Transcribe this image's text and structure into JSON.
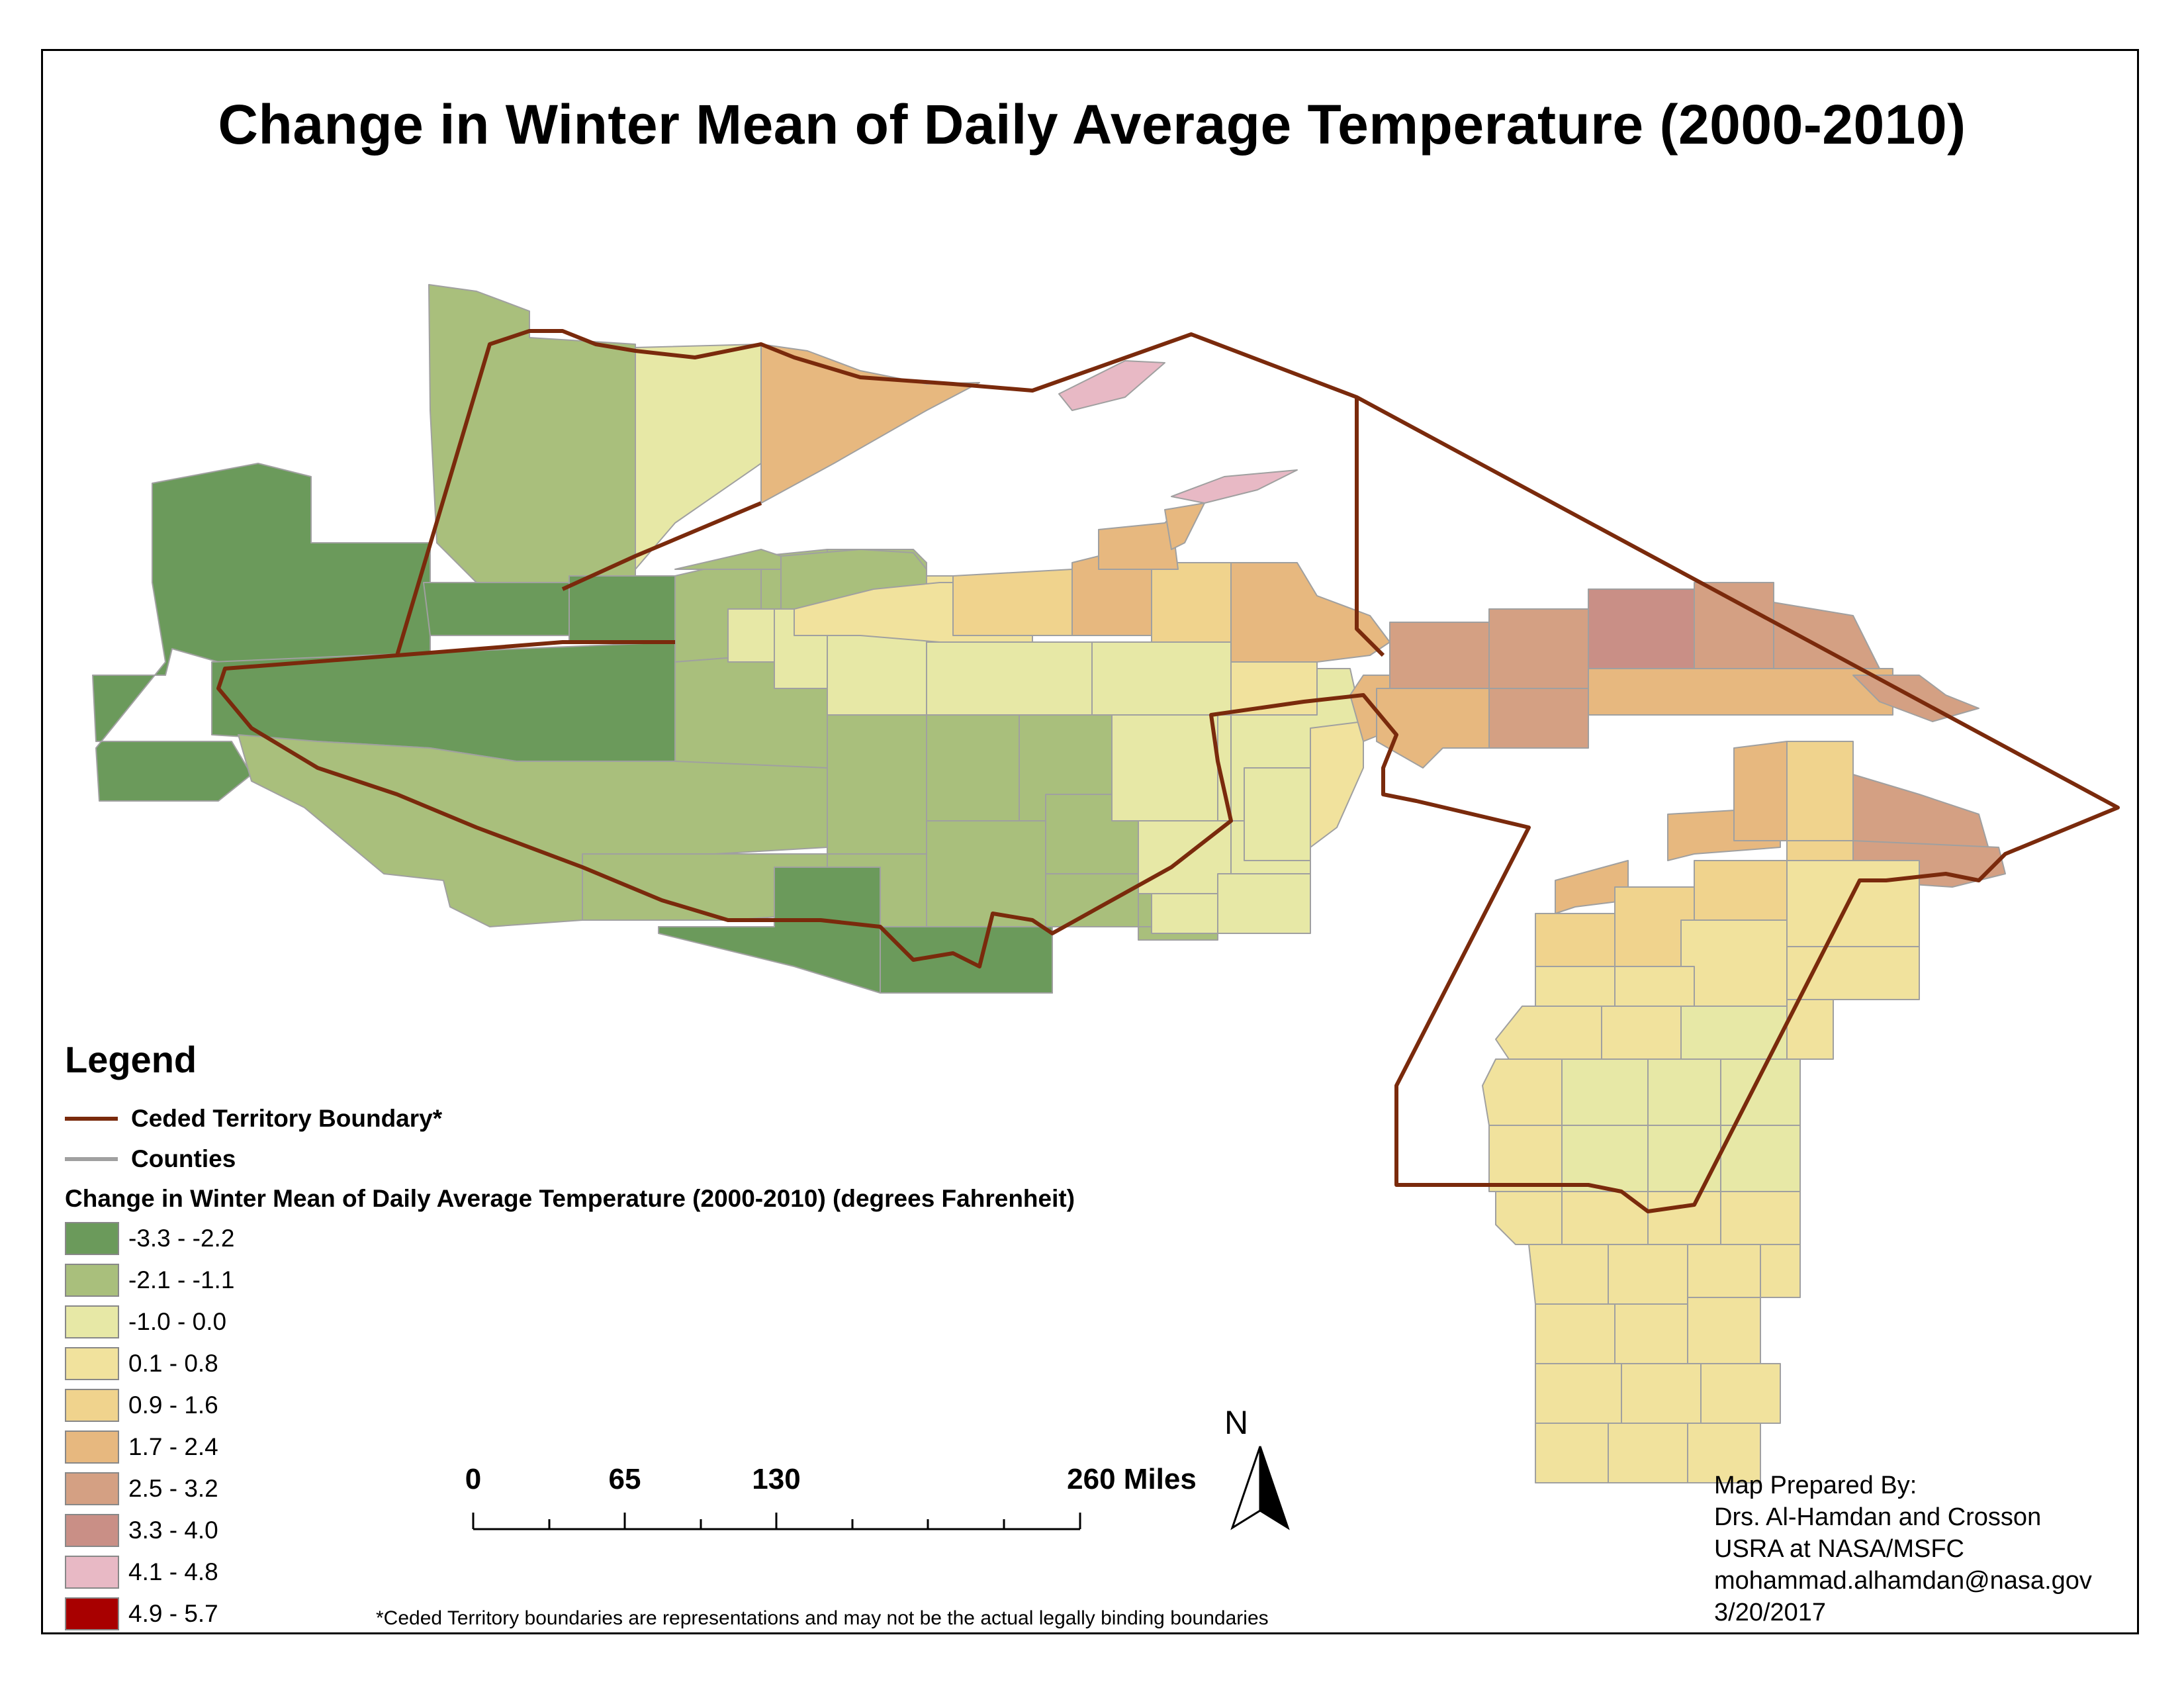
{
  "title": "Change in Winter Mean of Daily Average Temperature (2000-2010)",
  "colors": {
    "c1": "#6b9a5b",
    "c2": "#a9bf7c",
    "c3": "#e7e8a6",
    "c4": "#f1e29d",
    "c5": "#f0d38d",
    "c6": "#e7b87f",
    "c7": "#d4a083",
    "c8": "#c98f86",
    "c9": "#e8b9c5",
    "c10": "#a80000",
    "boundary": "#7a2a0c",
    "counties": "#a0a0a0"
  },
  "legend": {
    "title": "Legend",
    "boundary_label": "Ceded Territory Boundary*",
    "counties_label": "Counties",
    "classes_title": "Change in Winter Mean of Daily Average Temperature (2000-2010) (degrees Fahrenheit)",
    "classes": [
      {
        "label": "-3.3 - -2.2",
        "color": "#6b9a5b"
      },
      {
        "label": "-2.1 - -1.1",
        "color": "#a9bf7c"
      },
      {
        "label": "-1.0 - 0.0",
        "color": "#e7e8a6"
      },
      {
        "label": "0.1 - 0.8",
        "color": "#f1e29d"
      },
      {
        "label": "0.9 - 1.6",
        "color": "#f0d38d"
      },
      {
        "label": "1.7 - 2.4",
        "color": "#e7b87f"
      },
      {
        "label": "2.5 - 3.2",
        "color": "#d4a083"
      },
      {
        "label": "3.3 - 4.0",
        "color": "#c98f86"
      },
      {
        "label": "4.1 - 4.8",
        "color": "#e8b9c5"
      },
      {
        "label": "4.9 - 5.7",
        "color": "#a80000"
      }
    ]
  },
  "scale_bar": {
    "labels": [
      "0",
      "65",
      "130",
      "260 Miles"
    ]
  },
  "north_arrow": {
    "label": "N",
    "icon": "north-arrow-icon"
  },
  "disclaimer": "*Ceded Territory boundaries are representations and may not be the actual legally binding boundaries",
  "credits": {
    "line1": "Map Prepared By:",
    "line2": "Drs. Al-Hamdan and Crosson",
    "line3": "USRA at NASA/MSFC",
    "line4": "mohammad.alhamdan@nasa.gov",
    "line5": "3/20/2017"
  }
}
